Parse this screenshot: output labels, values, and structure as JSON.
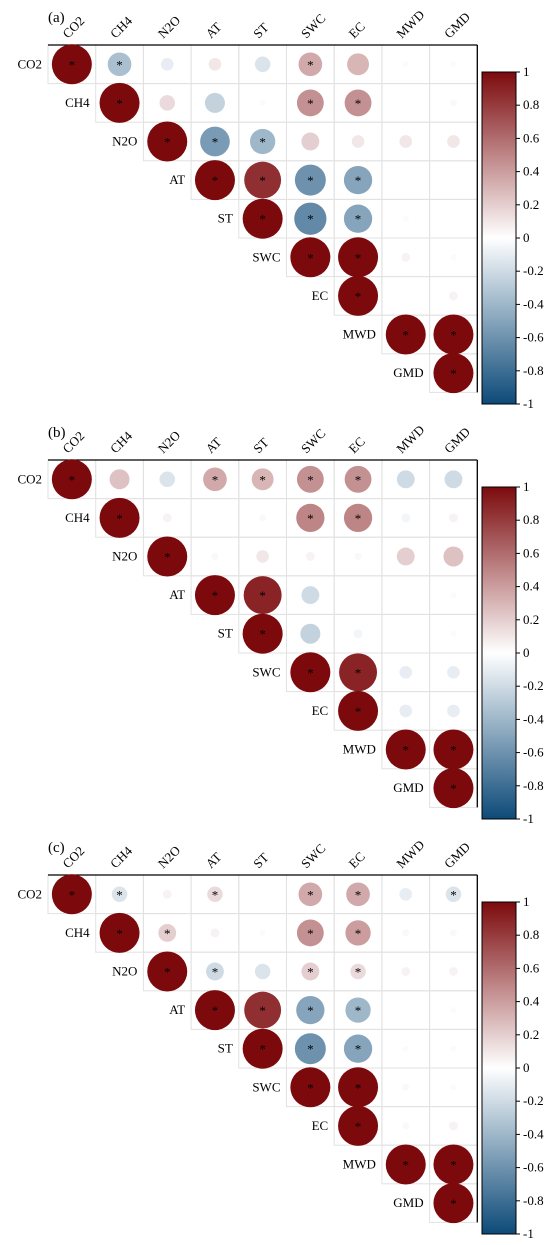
{
  "variables": [
    "CO2",
    "CH4",
    "N2O",
    "AT",
    "ST",
    "SWC",
    "EC",
    "MWD",
    "GMD"
  ],
  "colorbar": {
    "ticks": [
      1,
      0.8,
      0.6,
      0.4,
      0.2,
      0,
      -0.2,
      -0.4,
      -0.6,
      -0.8,
      -1
    ],
    "tick_labels": [
      "1",
      "0.8",
      "0.6",
      "0.4",
      "0.2",
      "0",
      "-0.2",
      "-0.4",
      "-0.6",
      "-0.8",
      "-1"
    ],
    "colors": {
      "neg": "#0d4a78",
      "neutral": "#ffffff",
      "pos": "#7c0a0d"
    }
  },
  "chart_data": [
    {
      "type": "heatmap",
      "panel": "(a)",
      "range": [
        -1,
        1
      ],
      "correlations": [
        [
          1,
          -0.35,
          -0.1,
          0.1,
          -0.15,
          0.35,
          0.3,
          0.02,
          0.02
        ],
        [
          null,
          1,
          0.15,
          -0.25,
          0.02,
          0.45,
          0.45,
          0,
          0.03
        ],
        [
          null,
          null,
          1,
          -0.55,
          -0.4,
          0.2,
          0.1,
          0.1,
          0.1
        ],
        [
          null,
          null,
          null,
          1,
          0.85,
          -0.6,
          -0.5,
          0,
          0
        ],
        [
          null,
          null,
          null,
          null,
          1,
          -0.65,
          -0.5,
          0.02,
          0
        ],
        [
          null,
          null,
          null,
          null,
          null,
          1,
          1,
          0.05,
          0.02
        ],
        [
          null,
          null,
          null,
          null,
          null,
          null,
          1,
          0,
          0.05
        ],
        [
          null,
          null,
          null,
          null,
          null,
          null,
          null,
          1,
          1
        ],
        [
          null,
          null,
          null,
          null,
          null,
          null,
          null,
          null,
          1
        ]
      ],
      "significant": [
        [
          true,
          true,
          false,
          false,
          false,
          true,
          false,
          false,
          false
        ],
        [
          null,
          true,
          false,
          false,
          false,
          true,
          true,
          false,
          false
        ],
        [
          null,
          null,
          true,
          true,
          true,
          false,
          false,
          false,
          false
        ],
        [
          null,
          null,
          null,
          true,
          true,
          true,
          true,
          false,
          false
        ],
        [
          null,
          null,
          null,
          null,
          true,
          true,
          true,
          false,
          false
        ],
        [
          null,
          null,
          null,
          null,
          null,
          true,
          true,
          false,
          false
        ],
        [
          null,
          null,
          null,
          null,
          null,
          null,
          true,
          false,
          false
        ],
        [
          null,
          null,
          null,
          null,
          null,
          null,
          null,
          true,
          true
        ],
        [
          null,
          null,
          null,
          null,
          null,
          null,
          null,
          null,
          true
        ]
      ]
    },
    {
      "type": "heatmap",
      "panel": "(b)",
      "range": [
        -1,
        1
      ],
      "correlations": [
        [
          1,
          0.25,
          -0.15,
          0.35,
          0.3,
          0.45,
          0.45,
          -0.2,
          -0.2
        ],
        [
          null,
          1,
          0.05,
          0,
          0.03,
          0.5,
          0.5,
          -0.05,
          0.05
        ],
        [
          null,
          null,
          1,
          0.03,
          0.1,
          0.05,
          0.03,
          0.2,
          0.25
        ],
        [
          null,
          null,
          null,
          1,
          0.9,
          -0.2,
          0,
          0,
          0.02
        ],
        [
          null,
          null,
          null,
          null,
          1,
          -0.25,
          -0.05,
          0,
          0.02
        ],
        [
          null,
          null,
          null,
          null,
          null,
          1,
          0.9,
          -0.1,
          -0.1
        ],
        [
          null,
          null,
          null,
          null,
          null,
          null,
          1,
          -0.1,
          -0.1
        ],
        [
          null,
          null,
          null,
          null,
          null,
          null,
          null,
          1,
          1
        ],
        [
          null,
          null,
          null,
          null,
          null,
          null,
          null,
          null,
          1
        ]
      ],
      "significant": [
        [
          true,
          false,
          false,
          true,
          true,
          true,
          true,
          false,
          false
        ],
        [
          null,
          true,
          false,
          false,
          false,
          true,
          true,
          false,
          false
        ],
        [
          null,
          null,
          true,
          false,
          false,
          false,
          false,
          false,
          false
        ],
        [
          null,
          null,
          null,
          true,
          true,
          false,
          false,
          false,
          false
        ],
        [
          null,
          null,
          null,
          null,
          true,
          false,
          false,
          false,
          false
        ],
        [
          null,
          null,
          null,
          null,
          null,
          true,
          true,
          false,
          false
        ],
        [
          null,
          null,
          null,
          null,
          null,
          null,
          true,
          false,
          false
        ],
        [
          null,
          null,
          null,
          null,
          null,
          null,
          null,
          true,
          true
        ],
        [
          null,
          null,
          null,
          null,
          null,
          null,
          null,
          null,
          true
        ]
      ]
    },
    {
      "type": "heatmap",
      "panel": "(c)",
      "range": [
        -1,
        1
      ],
      "correlations": [
        [
          1,
          -0.15,
          0.05,
          0.15,
          0,
          0.35,
          0.35,
          -0.1,
          -0.15
        ],
        [
          null,
          1,
          0.2,
          0.05,
          0.02,
          0.45,
          0.4,
          0.03,
          0.03
        ],
        [
          null,
          null,
          1,
          -0.2,
          -0.15,
          0.2,
          0.15,
          0.05,
          0.05
        ],
        [
          null,
          null,
          null,
          1,
          0.85,
          -0.5,
          -0.4,
          0,
          0.02
        ],
        [
          null,
          null,
          null,
          null,
          1,
          -0.6,
          -0.5,
          0.02,
          0.02
        ],
        [
          null,
          null,
          null,
          null,
          null,
          1,
          1,
          0.03,
          0.02
        ],
        [
          null,
          null,
          null,
          null,
          null,
          null,
          1,
          0.03,
          0.05
        ],
        [
          null,
          null,
          null,
          null,
          null,
          null,
          null,
          1,
          1
        ],
        [
          null,
          null,
          null,
          null,
          null,
          null,
          null,
          null,
          1
        ]
      ],
      "significant": [
        [
          true,
          true,
          false,
          true,
          false,
          true,
          true,
          false,
          true
        ],
        [
          null,
          true,
          true,
          false,
          false,
          true,
          true,
          false,
          false
        ],
        [
          null,
          null,
          true,
          true,
          false,
          true,
          true,
          false,
          false
        ],
        [
          null,
          null,
          null,
          true,
          true,
          true,
          true,
          false,
          false
        ],
        [
          null,
          null,
          null,
          null,
          true,
          true,
          true,
          false,
          false
        ],
        [
          null,
          null,
          null,
          null,
          null,
          true,
          true,
          false,
          false
        ],
        [
          null,
          null,
          null,
          null,
          null,
          null,
          true,
          false,
          false
        ],
        [
          null,
          null,
          null,
          null,
          null,
          null,
          null,
          true,
          true
        ],
        [
          null,
          null,
          null,
          null,
          null,
          null,
          null,
          null,
          true
        ]
      ]
    }
  ]
}
